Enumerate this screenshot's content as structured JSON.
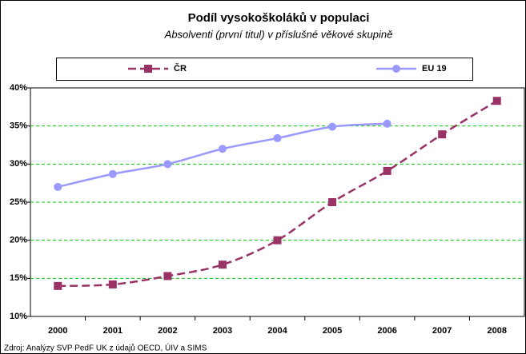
{
  "chart_data": {
    "type": "line",
    "title": "Podíl vysokoškoláků v populaci",
    "subtitle": "Absolventi (první titul) v příslušné věkové skupině",
    "footer": "Zdroj: Analýzy SVP PedF UK z údajů OECD, ÚIV a SIMS",
    "categories": [
      "2000",
      "2001",
      "2002",
      "2003",
      "2004",
      "2005",
      "2006",
      "2007",
      "2008"
    ],
    "series": [
      {
        "name": "ČR",
        "color": "#993366",
        "values": [
          14.0,
          14.2,
          15.3,
          16.8,
          20.0,
          25.0,
          29.1,
          33.9,
          38.3
        ]
      },
      {
        "name": "EU 19",
        "color": "#9999ff",
        "values": [
          27.0,
          28.7,
          30.0,
          32.0,
          33.4,
          34.9,
          35.3,
          null,
          null
        ]
      }
    ],
    "ylim": [
      10,
      40
    ],
    "yticks": [
      {
        "value": 10,
        "label": "10%"
      },
      {
        "value": 15,
        "label": "15%"
      },
      {
        "value": 20,
        "label": "20%"
      },
      {
        "value": 25,
        "label": "25%"
      },
      {
        "value": 30,
        "label": "30%"
      },
      {
        "value": 35,
        "label": "35%"
      },
      {
        "value": 40,
        "label": "40%"
      }
    ],
    "grid": true
  }
}
